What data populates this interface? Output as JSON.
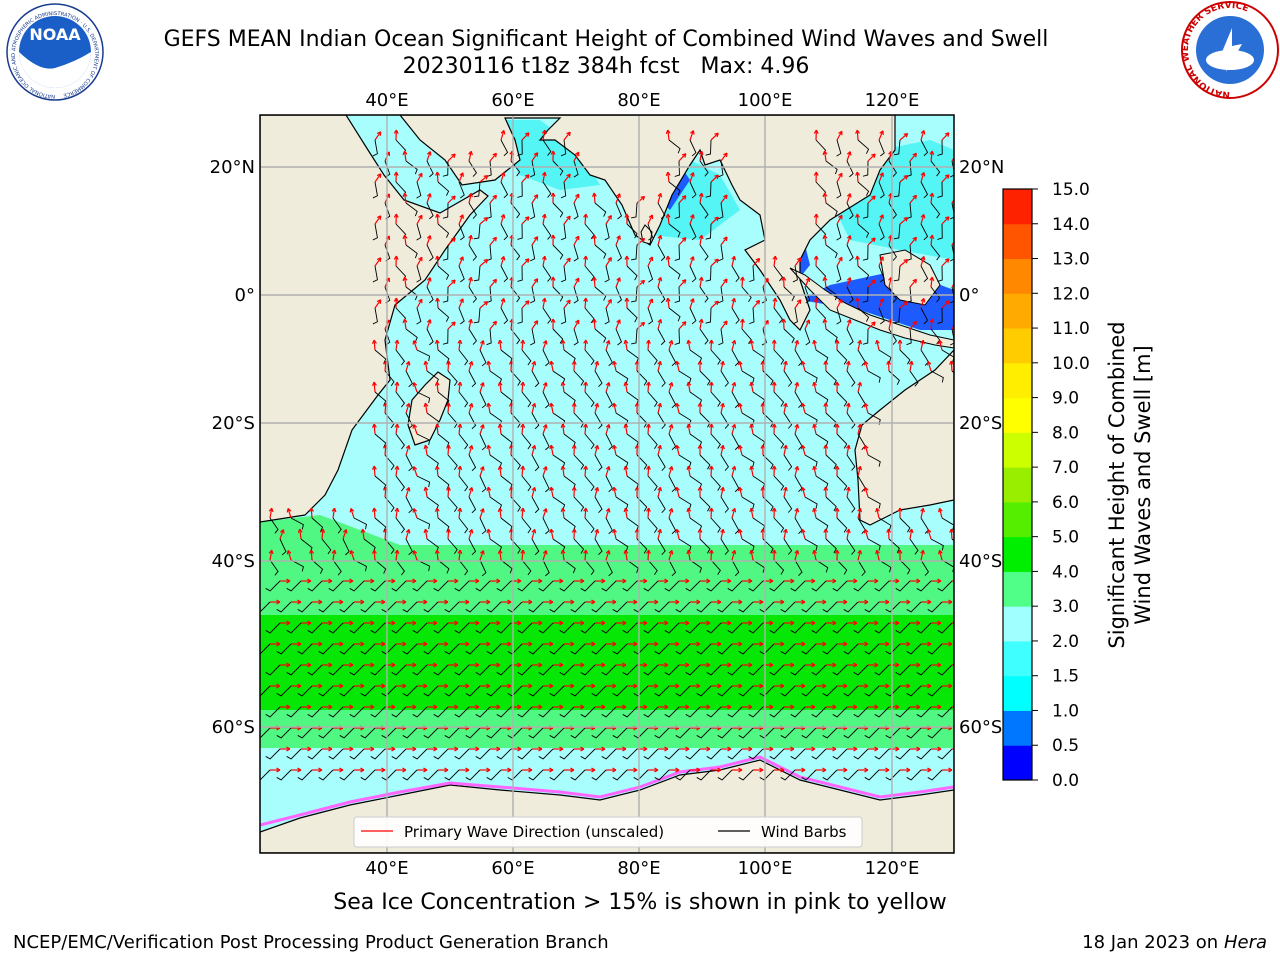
{
  "title": {
    "line1": "GEFS MEAN Indian Ocean Significant Height of Combined Wind Waves and Swell",
    "line2": "20230116 t18z 384h fcst   Max: 4.96"
  },
  "map": {
    "lon_ticks": [
      "40°E",
      "60°E",
      "80°E",
      "100°E",
      "120°E"
    ],
    "lat_ticks_left": [
      "20°N",
      "0°",
      "20°S",
      "40°S",
      "60°S"
    ],
    "lat_ticks_right": [
      "20°N",
      "0°",
      "20°S",
      "40°S",
      "60°S"
    ],
    "colors": {
      "land": "#efecdc",
      "wave_0_1": "#1e5bff",
      "wave_1_2": "#55f5f5",
      "wave_2_3": "#a8fdfd",
      "wave_3_4": "#50f883",
      "wave_4_5": "#06e705",
      "ice": "#ff66ff"
    }
  },
  "legend": {
    "items": [
      "Primary Wave Direction (unscaled)",
      "Wind Barbs"
    ],
    "colors": [
      "#ff0000",
      "#000000"
    ]
  },
  "colorbar": {
    "label_line1": "Significant Height of Combined",
    "label_line2": "Wind Waves and Swell [m]",
    "ticks": [
      "0.0",
      "0.5",
      "1.0",
      "1.5",
      "2.0",
      "3.0",
      "4.0",
      "5.0",
      "6.0",
      "7.0",
      "8.0",
      "9.0",
      "10.0",
      "11.0",
      "12.0",
      "13.0",
      "14.0",
      "15.0"
    ],
    "colors": [
      "#0000ff",
      "#0077ff",
      "#00ffff",
      "#40ffff",
      "#a0ffff",
      "#50ff88",
      "#00ee00",
      "#55ee00",
      "#99ee00",
      "#ccff00",
      "#ffff00",
      "#ffee00",
      "#ffcc00",
      "#ffaa00",
      "#ff8800",
      "#ff5500",
      "#ff2200"
    ]
  },
  "note": "Sea Ice Concentration > 15% is shown in pink to yellow",
  "footer": {
    "left": "NCEP/EMC/Verification Post Processing Product Generation Branch",
    "right_prefix": "18 Jan 2023 on ",
    "right_host": "Hera"
  },
  "logos": {
    "left": "NOAA",
    "left_ring": "NATIONAL OCEANIC AND ATMOSPHERIC ADMINISTRATION · U.S. DEPARTMENT OF COMMERCE",
    "right_ring": "NATIONAL WEATHER SERVICE"
  }
}
